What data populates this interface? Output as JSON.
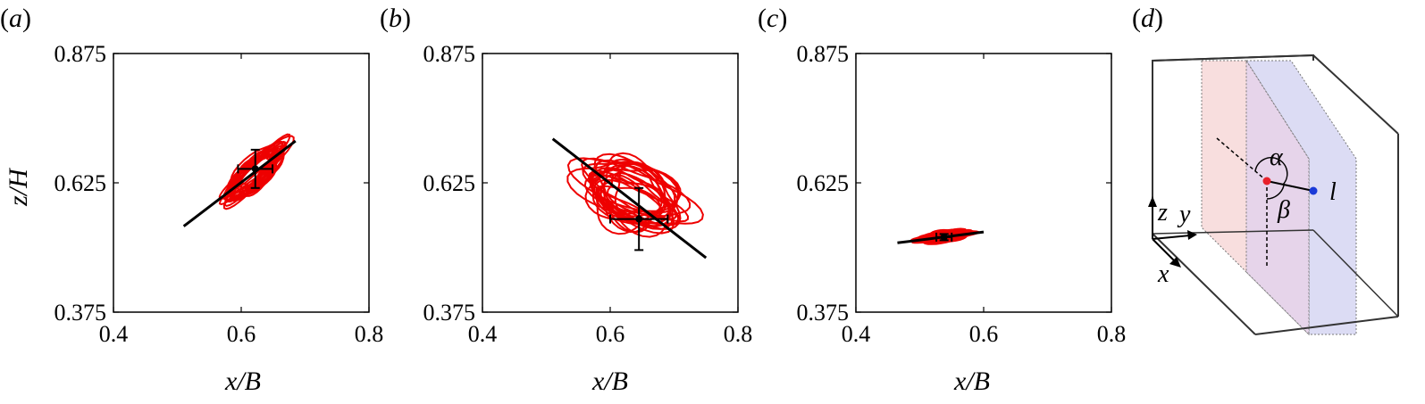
{
  "figure": {
    "panels": [
      {
        "open": "(",
        "letter": "a",
        "close": ")"
      },
      {
        "open": "(",
        "letter": "b",
        "close": ")"
      },
      {
        "open": "(",
        "letter": "c",
        "close": ")"
      },
      {
        "open": "(",
        "letter": "d",
        "close": ")"
      }
    ],
    "ylabel": "z/H",
    "xlabel": "x/B",
    "schematic": {
      "axis_z": "z",
      "axis_y": "y",
      "axis_x": "x",
      "alpha": "α",
      "beta": "β",
      "l": "l",
      "colors": {
        "plane_front": "#f8dede",
        "plane_back": "#dcdcf4",
        "red_point": "#e8202a",
        "blue_point": "#1a3ad8"
      }
    }
  },
  "chart_data": [
    {
      "type": "scatter",
      "panel": "a",
      "xlabel": "x/B",
      "ylabel": "z/H",
      "xlim": [
        0.4,
        0.8
      ],
      "ylim": [
        0.375,
        0.875
      ],
      "xticks": [
        "0.4",
        "0.6",
        "0.8"
      ],
      "yticks": [
        "0.375",
        "0.625",
        "0.875"
      ],
      "trajectory_color": "#ee0000",
      "trajectory": {
        "center": [
          0.622,
          0.645
        ],
        "major": 0.062,
        "minor": 0.02,
        "angle_deg": 44
      },
      "mean": [
        0.622,
        0.652
      ],
      "errorbar": {
        "xerr": 0.027,
        "yerr": 0.037
      },
      "fit_line": {
        "x": [
          0.51,
          0.685
        ],
        "y": [
          0.541,
          0.706
        ]
      }
    },
    {
      "type": "scatter",
      "panel": "b",
      "xlabel": "x/B",
      "ylabel": "",
      "xlim": [
        0.4,
        0.8
      ],
      "ylim": [
        0.375,
        0.875
      ],
      "xticks": [
        "0.4",
        "0.6",
        "0.8"
      ],
      "yticks": [
        "0.375",
        "0.625",
        "0.875"
      ],
      "trajectory_color": "#ee0000",
      "trajectory": {
        "center": [
          0.638,
          0.6
        ],
        "major": 0.085,
        "minor": 0.048,
        "angle_deg": -25
      },
      "mean": [
        0.645,
        0.555
      ],
      "errorbar": {
        "xerr": 0.045,
        "yerr": 0.06
      },
      "fit_line": {
        "x": [
          0.51,
          0.75
        ],
        "y": [
          0.71,
          0.48
        ]
      }
    },
    {
      "type": "scatter",
      "panel": "c",
      "xlabel": "x/B",
      "ylabel": "",
      "xlim": [
        0.4,
        0.8
      ],
      "ylim": [
        0.375,
        0.875
      ],
      "xticks": [
        "0.4",
        "0.6",
        "0.8"
      ],
      "yticks": [
        "0.375",
        "0.625",
        "0.875"
      ],
      "trajectory_color": "#ee0000",
      "trajectory": {
        "center": [
          0.538,
          0.522
        ],
        "major": 0.042,
        "minor": 0.008,
        "angle_deg": 8
      },
      "mean": [
        0.538,
        0.52
      ],
      "errorbar": {
        "xerr": 0.012,
        "yerr": 0.006
      },
      "fit_line": {
        "x": [
          0.465,
          0.6
        ],
        "y": [
          0.509,
          0.53
        ]
      }
    }
  ]
}
